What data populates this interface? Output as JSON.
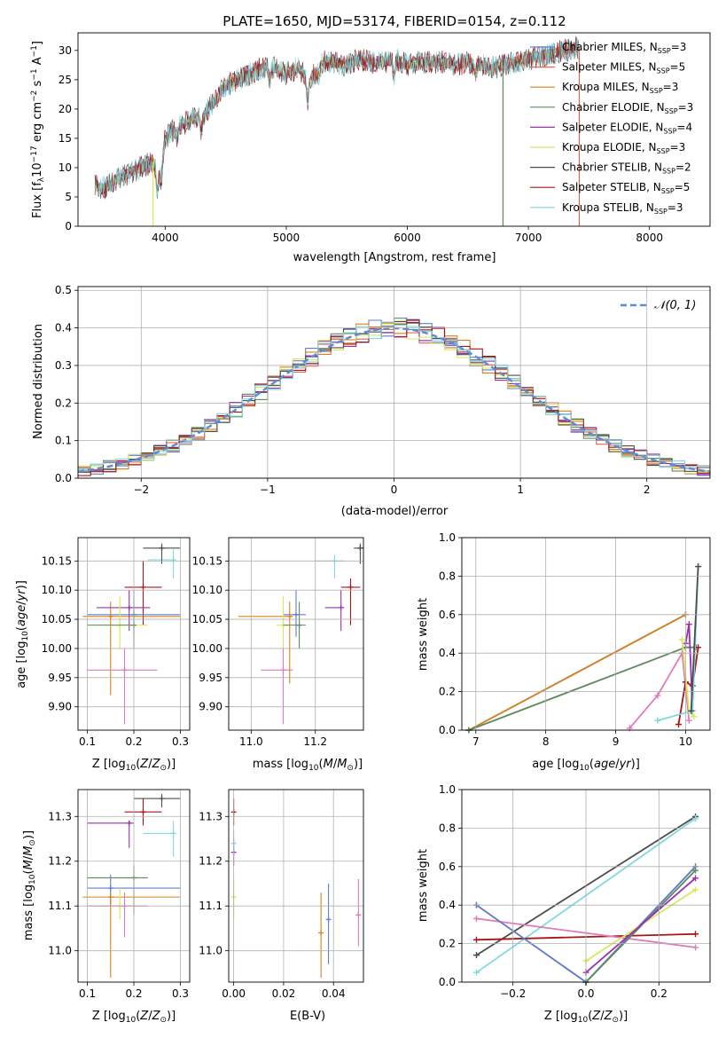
{
  "title": "PLATE=1650, MJD=53174, FIBERID=0154, z=0.112",
  "colors": {
    "chabrier_miles": "#5b7fd6",
    "salpeter_miles": "#e2674a",
    "kroupa_miles": "#d9801a",
    "chabrier_elodie": "#5c8a5c",
    "salpeter_elodie": "#9b2fb0",
    "kroupa_elodie": "#d8e85a",
    "chabrier_stelib": "#4d4d4d",
    "salpeter_stelib": "#a81418",
    "kroupa_stelib": "#7fd9df",
    "pink": "#e07ab8",
    "normal": "#5b8ed6"
  },
  "chart_data": [
    {
      "id": "spectrum",
      "type": "line",
      "xlabel": "wavelength [Angstrom, rest frame]",
      "ylabel": "Flux [f_λ 10^-17 erg cm^-2 s^-1 A^-1]",
      "xlim": [
        3280,
        8500
      ],
      "ylim": [
        0,
        33
      ],
      "xticks": [
        "4000",
        "5000",
        "6000",
        "7000",
        "8000"
      ],
      "yticks": [
        "0",
        "5",
        "10",
        "15",
        "20",
        "25",
        "30"
      ],
      "grid": false,
      "legend_position": "top-right",
      "legend": [
        {
          "label": "Chabrier MILES, N",
          "sub": "SSP",
          "suffix": "=3"
        },
        {
          "label": "Salpeter MILES, N",
          "sub": "SSP",
          "suffix": "=5"
        },
        {
          "label": "Kroupa MILES, N",
          "sub": "SSP",
          "suffix": "=3"
        },
        {
          "label": "Chabrier ELODIE, N",
          "sub": "SSP",
          "suffix": "=3"
        },
        {
          "label": "Salpeter ELODIE, N",
          "sub": "SSP",
          "suffix": "=4"
        },
        {
          "label": "Kroupa ELODIE, N",
          "sub": "SSP",
          "suffix": "=3"
        },
        {
          "label": "Chabrier STELIB, N",
          "sub": "SSP",
          "suffix": "=2"
        },
        {
          "label": "Salpeter STELIB, N",
          "sub": "SSP",
          "suffix": "=5"
        },
        {
          "label": "Kroupa STELIB, N",
          "sub": "SSP",
          "suffix": "=3"
        }
      ],
      "continuum": {
        "x": [
          3420,
          3500,
          3600,
          3700,
          3800,
          3900,
          3950,
          4000,
          4100,
          4200,
          4300,
          4400,
          4500,
          4600,
          4700,
          4800,
          4900,
          5000,
          5100,
          5200,
          5300,
          5400,
          5500,
          5600,
          5700,
          5800,
          5900,
          6000,
          6100,
          6200,
          6300,
          6400,
          6500,
          6600,
          6700,
          6800,
          6900,
          7000,
          7100,
          7200,
          7300,
          7400
        ],
        "y": [
          7,
          6.5,
          8,
          9,
          10,
          11,
          9,
          15,
          17,
          18,
          19,
          21,
          24,
          25,
          26,
          27,
          27,
          26,
          27,
          25,
          28,
          28,
          27.5,
          28.5,
          28,
          28,
          28.5,
          27.5,
          28,
          28,
          28,
          27.5,
          28,
          27.5,
          27,
          27.5,
          28,
          28.5,
          29,
          29.5,
          30,
          30.5
        ]
      },
      "drops": [
        3900,
        6790,
        7420
      ]
    },
    {
      "id": "residual-histogram",
      "type": "line",
      "xlabel": "(data-model)/error",
      "ylabel": "Normed distribution",
      "xlim": [
        -2.5,
        2.5
      ],
      "ylim": [
        0,
        0.51
      ],
      "xticks": [
        "−2",
        "−1",
        "0",
        "1",
        "2"
      ],
      "yticks": [
        "0.0",
        "0.1",
        "0.2",
        "0.3",
        "0.4",
        "0.5"
      ],
      "grid": true,
      "legend_position": "top-right",
      "legend": [
        {
          "label": "𝒩(0, 1)"
        }
      ],
      "bin_width": 0.1
    },
    {
      "id": "age-vs-Z",
      "type": "scatter",
      "xlabel": "Z [log10(Z/Z⊙)]",
      "ylabel": "age  [log10(age/yr)]",
      "xlim": [
        0.08,
        0.32
      ],
      "ylim": [
        9.86,
        10.19
      ],
      "xticks": [
        "0.1",
        "0.2",
        "0.3"
      ],
      "yticks": [
        "9.90",
        "9.95",
        "10.00",
        "10.05",
        "10.10",
        "10.15"
      ],
      "grid": true,
      "points": [
        {
          "series": "kroupa_stelib",
          "x": 0.285,
          "y": 10.152,
          "xerr": [
            0.23,
            0.29
          ],
          "yerr": [
            10.12,
            10.17
          ]
        },
        {
          "series": "chabrier_stelib",
          "x": 0.26,
          "y": 10.172,
          "xerr": [
            0.22,
            0.3
          ],
          "yerr": [
            10.145,
            10.18
          ]
        },
        {
          "series": "salpeter_stelib",
          "x": 0.22,
          "y": 10.105,
          "xerr": [
            0.18,
            0.26
          ],
          "yerr": [
            10.04,
            10.15
          ]
        },
        {
          "series": "chabrier_miles",
          "x": 0.2,
          "y": 10.058,
          "xerr": [
            0.1,
            0.3
          ],
          "yerr": [
            10.02,
            10.1
          ]
        },
        {
          "series": "kroupa_miles",
          "x": 0.15,
          "y": 10.055,
          "xerr": [
            0.09,
            0.3
          ],
          "yerr": [
            9.92,
            10.08
          ]
        },
        {
          "series": "salpeter_elodie",
          "x": 0.19,
          "y": 10.07,
          "xerr": [
            0.12,
            0.235
          ],
          "yerr": [
            10.03,
            10.1
          ]
        },
        {
          "series": "kroupa_elodie",
          "x": 0.17,
          "y": 10.04,
          "xerr": [
            0.12,
            0.23
          ],
          "yerr": [
            10.0,
            10.09
          ]
        },
        {
          "series": "chabrier_elodie",
          "x": 0.2,
          "y": 10.04,
          "xerr": [
            0.1,
            0.2
          ],
          "yerr": [
            10.0,
            10.08
          ]
        },
        {
          "series": "pink",
          "x": 0.18,
          "y": 9.963,
          "xerr": [
            0.1,
            0.25
          ],
          "yerr": [
            9.87,
            10.0
          ]
        }
      ]
    },
    {
      "id": "age-vs-mass",
      "type": "scatter",
      "xlabel": "mass [log10(M/M⊙)]",
      "ylabel": "",
      "xlim": [
        10.93,
        11.35
      ],
      "ylim": [
        9.86,
        10.19
      ],
      "xticks": [
        "11.0",
        "11.2"
      ],
      "yticks": [
        "9.90",
        "9.95",
        "10.00",
        "10.05",
        "10.10",
        "10.15"
      ],
      "grid": true,
      "points": [
        {
          "series": "chabrier_stelib",
          "x": 11.34,
          "y": 10.172,
          "xerr": [
            11.32,
            11.35
          ],
          "yerr": [
            10.145,
            10.18
          ]
        },
        {
          "series": "kroupa_stelib",
          "x": 11.26,
          "y": 10.15,
          "xerr": [
            11.2,
            11.29
          ],
          "yerr": [
            10.12,
            10.16
          ]
        },
        {
          "series": "salpeter_stelib",
          "x": 11.31,
          "y": 10.105,
          "xerr": [
            11.28,
            11.34
          ],
          "yerr": [
            10.04,
            10.12
          ]
        },
        {
          "series": "salpeter_elodie",
          "x": 11.28,
          "y": 10.07,
          "xerr": [
            11.23,
            11.29
          ],
          "yerr": [
            10.03,
            10.1
          ]
        },
        {
          "series": "chabrier_miles",
          "x": 11.14,
          "y": 10.058,
          "xerr": [
            11.1,
            11.17
          ],
          "yerr": [
            10.02,
            10.1
          ]
        },
        {
          "series": "kroupa_miles",
          "x": 11.12,
          "y": 10.055,
          "xerr": [
            10.96,
            11.13
          ],
          "yerr": [
            9.94,
            10.08
          ]
        },
        {
          "series": "kroupa_elodie",
          "x": 11.1,
          "y": 10.04,
          "xerr": [
            11.08,
            11.12
          ],
          "yerr": [
            10.0,
            10.09
          ]
        },
        {
          "series": "chabrier_elodie",
          "x": 11.15,
          "y": 10.04,
          "xerr": [
            11.1,
            11.17
          ],
          "yerr": [
            10.0,
            10.08
          ]
        },
        {
          "series": "pink",
          "x": 11.1,
          "y": 9.963,
          "xerr": [
            11.03,
            11.13
          ],
          "yerr": [
            9.87,
            10.0
          ]
        }
      ]
    },
    {
      "id": "mass-weight-vs-age",
      "type": "line",
      "xlabel": "age  [log10(age/yr)]",
      "ylabel": "mass weight",
      "xlim": [
        6.8,
        10.35
      ],
      "ylim": [
        0,
        1.0
      ],
      "xticks": [
        "7",
        "8",
        "9",
        "10"
      ],
      "yticks": [
        "0.0",
        "0.2",
        "0.4",
        "0.6",
        "0.8",
        "1.0"
      ],
      "grid": true,
      "series": [
        {
          "color": "chabrier_miles",
          "x": [
            6.9,
            10.0
          ],
          "y": [
            0.0,
            0.6
          ]
        },
        {
          "color": "kroupa_miles",
          "x": [
            6.9,
            10.0
          ],
          "y": [
            0.0,
            0.6
          ]
        },
        {
          "color": "chabrier_elodie",
          "x": [
            6.9,
            10.0,
            10.15
          ],
          "y": [
            0.0,
            0.43,
            0.43
          ]
        },
        {
          "color": "pink",
          "x": [
            9.2,
            9.6,
            9.95,
            10.05
          ],
          "y": [
            0.01,
            0.18,
            0.4,
            0.05
          ]
        },
        {
          "color": "salpeter_stelib",
          "x": [
            9.9,
            10.0,
            10.1,
            10.18
          ],
          "y": [
            0.03,
            0.25,
            0.23,
            0.43
          ]
        },
        {
          "color": "salpeter_elodie",
          "x": [
            10.0,
            10.05,
            10.1
          ],
          "y": [
            0.45,
            0.55,
            0.1
          ]
        },
        {
          "color": "kroupa_elodie",
          "x": [
            9.95,
            10.05,
            10.12
          ],
          "y": [
            0.47,
            0.1,
            0.07
          ]
        },
        {
          "color": "kroupa_stelib",
          "x": [
            9.6,
            10.1,
            10.18
          ],
          "y": [
            0.05,
            0.1,
            0.85
          ]
        },
        {
          "color": "chabrier_stelib",
          "x": [
            10.08,
            10.18
          ],
          "y": [
            0.1,
            0.85
          ]
        }
      ]
    },
    {
      "id": "mass-vs-Z",
      "type": "scatter",
      "xlabel": "Z [log10(Z/Z⊙)]",
      "ylabel": "mass [log10(M/M⊙)]",
      "xlim": [
        0.08,
        0.32
      ],
      "ylim": [
        10.93,
        11.36
      ],
      "xticks": [
        "0.1",
        "0.2",
        "0.3"
      ],
      "yticks": [
        "11.0",
        "11.1",
        "11.2",
        "11.3"
      ],
      "grid": true,
      "points": [
        {
          "series": "chabrier_stelib",
          "x": 0.26,
          "y": 11.34,
          "xerr": [
            0.2,
            0.3
          ],
          "yerr": [
            11.32,
            11.35
          ]
        },
        {
          "series": "salpeter_stelib",
          "x": 0.22,
          "y": 11.31,
          "xerr": [
            0.18,
            0.26
          ],
          "yerr": [
            11.28,
            11.34
          ]
        },
        {
          "series": "salpeter_elodie",
          "x": 0.19,
          "y": 11.285,
          "xerr": [
            0.1,
            0.2
          ],
          "yerr": [
            11.23,
            11.29
          ]
        },
        {
          "series": "kroupa_stelib",
          "x": 0.285,
          "y": 11.262,
          "xerr": [
            0.22,
            0.29
          ],
          "yerr": [
            11.21,
            11.29
          ]
        },
        {
          "series": "chabrier_elodie",
          "x": 0.2,
          "y": 11.163,
          "xerr": [
            0.1,
            0.23
          ],
          "yerr": [
            11.08,
            11.19
          ]
        },
        {
          "series": "chabrier_miles",
          "x": 0.15,
          "y": 11.14,
          "xerr": [
            0.1,
            0.3
          ],
          "yerr": [
            11.1,
            11.17
          ]
        },
        {
          "series": "kroupa_miles",
          "x": 0.15,
          "y": 11.12,
          "xerr": [
            0.09,
            0.3
          ],
          "yerr": [
            10.94,
            11.13
          ]
        },
        {
          "series": "kroupa_elodie",
          "x": 0.17,
          "y": 11.1,
          "xerr": [
            0.12,
            0.21
          ],
          "yerr": [
            11.07,
            11.14
          ]
        },
        {
          "series": "pink",
          "x": 0.18,
          "y": 11.1,
          "xerr": [
            0.1,
            0.23
          ],
          "yerr": [
            11.03,
            11.13
          ]
        }
      ]
    },
    {
      "id": "mass-vs-ebv",
      "type": "scatter",
      "xlabel": "E(B-V)",
      "ylabel": "",
      "xlim": [
        -0.002,
        0.052
      ],
      "ylim": [
        10.93,
        11.36
      ],
      "xticks": [
        "0.00",
        "0.02",
        "0.04"
      ],
      "yticks": [
        "11.0",
        "11.1",
        "11.2",
        "11.3"
      ],
      "grid": true,
      "points": [
        {
          "series": "salpeter_stelib",
          "x": 0.0,
          "y": 11.31,
          "xerr": [
            0,
            0
          ],
          "yerr": [
            11.28,
            11.34
          ]
        },
        {
          "series": "salpeter_elodie",
          "x": 0.0,
          "y": 11.22,
          "xerr": [
            0,
            0
          ],
          "yerr": [
            11.19,
            11.25
          ]
        },
        {
          "series": "kroupa_stelib",
          "x": 0.0,
          "y": 11.24,
          "xerr": [
            0,
            0
          ],
          "yerr": [
            11.21,
            11.27
          ]
        },
        {
          "series": "kroupa_elodie",
          "x": 0.0,
          "y": 11.12,
          "xerr": [
            0,
            0
          ],
          "yerr": [
            11.07,
            11.16
          ]
        },
        {
          "series": "kroupa_miles",
          "x": 0.035,
          "y": 11.04,
          "xerr": [
            0,
            0
          ],
          "yerr": [
            10.94,
            11.13
          ]
        },
        {
          "series": "chabrier_miles",
          "x": 0.038,
          "y": 11.07,
          "xerr": [
            0,
            0
          ],
          "yerr": [
            10.97,
            11.15
          ]
        },
        {
          "series": "pink",
          "x": 0.05,
          "y": 11.08,
          "xerr": [
            0,
            0
          ],
          "yerr": [
            11.01,
            11.16
          ]
        }
      ]
    },
    {
      "id": "mass-weight-vs-Z",
      "type": "line",
      "xlabel": "Z [log10(Z/Z⊙)]",
      "ylabel": "mass weight",
      "xlim": [
        -0.34,
        0.34
      ],
      "ylim": [
        0,
        1.0
      ],
      "xticks": [
        "−0.2",
        "0.0",
        "0.2"
      ],
      "yticks": [
        "0.0",
        "0.2",
        "0.4",
        "0.6",
        "0.8",
        "1.0"
      ],
      "grid": true,
      "series": [
        {
          "color": "chabrier_stelib",
          "x": [
            -0.3,
            0.3
          ],
          "y": [
            0.14,
            0.86
          ]
        },
        {
          "color": "kroupa_stelib",
          "x": [
            -0.3,
            0.3
          ],
          "y": [
            0.05,
            0.85
          ]
        },
        {
          "color": "salpeter_stelib",
          "x": [
            -0.3,
            0.3
          ],
          "y": [
            0.22,
            0.25
          ]
        },
        {
          "color": "pink",
          "x": [
            -0.3,
            0.3
          ],
          "y": [
            0.33,
            0.18
          ]
        },
        {
          "color": "kroupa_miles",
          "x": [
            -0.3,
            0.0,
            0.3
          ],
          "y": [
            0.4,
            0.0,
            0.6
          ]
        },
        {
          "color": "chabrier_miles",
          "x": [
            -0.3,
            0.0,
            0.3
          ],
          "y": [
            0.4,
            0.0,
            0.6
          ]
        },
        {
          "color": "chabrier_elodie",
          "x": [
            0.0,
            0.3
          ],
          "y": [
            0.0,
            0.58
          ]
        },
        {
          "color": "kroupa_elodie",
          "x": [
            0.0,
            0.3
          ],
          "y": [
            0.11,
            0.48
          ]
        },
        {
          "color": "salpeter_elodie",
          "x": [
            0.0,
            0.3
          ],
          "y": [
            0.05,
            0.54
          ]
        }
      ]
    }
  ]
}
